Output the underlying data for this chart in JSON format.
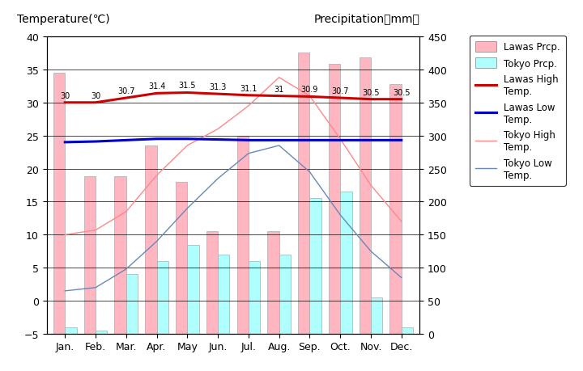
{
  "months": [
    "Jan.",
    "Feb.",
    "Mar.",
    "Apr.",
    "May",
    "Jun.",
    "Jul.",
    "Aug.",
    "Sep.",
    "Oct.",
    "Nov.",
    "Dec."
  ],
  "lawas_precip": [
    395,
    238,
    238,
    285,
    230,
    155,
    300,
    155,
    425,
    408,
    418,
    378
  ],
  "tokyo_precip": [
    10,
    5,
    90,
    110,
    135,
    120,
    110,
    120,
    205,
    215,
    55,
    10
  ],
  "lawas_high": [
    30.0,
    30.0,
    30.7,
    31.4,
    31.5,
    31.3,
    31.1,
    31.0,
    30.9,
    30.7,
    30.5,
    30.5
  ],
  "lawas_low": [
    24.0,
    24.1,
    24.3,
    24.5,
    24.5,
    24.4,
    24.3,
    24.3,
    24.3,
    24.3,
    24.3,
    24.3
  ],
  "tokyo_high": [
    10.0,
    10.7,
    13.5,
    19.0,
    23.5,
    26.0,
    29.5,
    33.8,
    31.0,
    24.5,
    17.5,
    12.0
  ],
  "tokyo_low": [
    1.5,
    2.0,
    4.8,
    9.0,
    14.0,
    18.5,
    22.3,
    23.5,
    19.5,
    13.0,
    7.5,
    3.5
  ],
  "lawas_high_labels": [
    "30",
    "30",
    "30.7",
    "31.4",
    "31.5",
    "31.3",
    "31.1",
    "31",
    "30.9",
    "30.7",
    "30.5",
    "30.5"
  ],
  "lawas_precip_color": "#FFB6C1",
  "tokyo_precip_color": "#AFFFFF",
  "lawas_high_color": "#CC0000",
  "lawas_low_color": "#0000CC",
  "tokyo_high_color": "#FF8888",
  "tokyo_low_color": "#6688BB",
  "bg_color": "#C8C8C8",
  "temp_ylim": [
    -5,
    40
  ],
  "precip_ylim": [
    0,
    450
  ],
  "title_left": "Temperature(℃)",
  "title_right": "Precipitation（mm）",
  "bar_width": 0.38
}
